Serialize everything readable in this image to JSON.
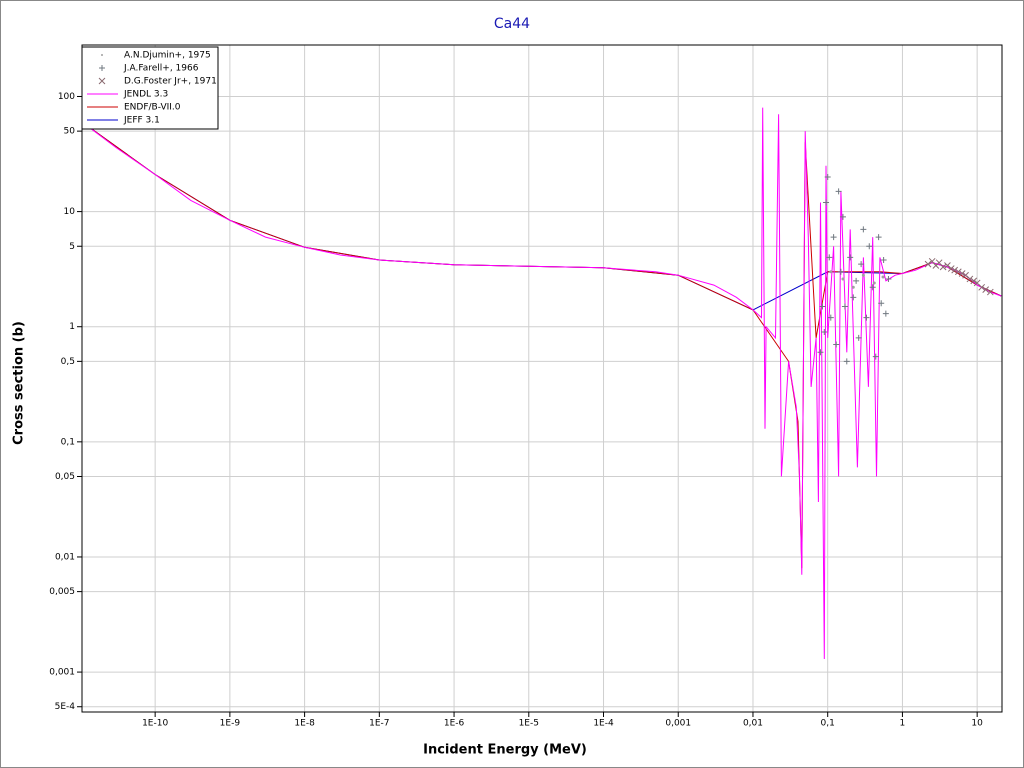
{
  "chart_data": {
    "type": "line",
    "title": "Ca44",
    "x_label": "Incident Energy (MeV)",
    "y_label": "Cross section (b)",
    "log_x": true,
    "log_y": true,
    "grid": true,
    "legend": "upper left",
    "xlim": [
      1.05e-11,
      21.5
    ],
    "ylim": [
      0.00045,
      280
    ],
    "xticks": [
      {
        "value": 1e-10,
        "label": "1E-10"
      },
      {
        "value": 1e-09,
        "label": "1E-9"
      },
      {
        "value": 1e-08,
        "label": "1E-8"
      },
      {
        "value": 1e-07,
        "label": "1E-7"
      },
      {
        "value": 1e-06,
        "label": "1E-6"
      },
      {
        "value": 1e-05,
        "label": "1E-5"
      },
      {
        "value": 0.0001,
        "label": "1E-4"
      },
      {
        "value": 0.001,
        "label": "0,001"
      },
      {
        "value": 0.01,
        "label": "0,01"
      },
      {
        "value": 0.1,
        "label": "0,1"
      },
      1,
      10
    ],
    "yticks": [
      100,
      50,
      10,
      5,
      1,
      {
        "value": 0.5,
        "label": "0,5"
      },
      {
        "value": 0.1,
        "label": "0,1"
      },
      {
        "value": 0.05,
        "label": "0,05"
      },
      {
        "value": 0.01,
        "label": "0,01"
      },
      {
        "value": 0.005,
        "label": "0,005"
      },
      {
        "value": 0.001,
        "label": "0,001"
      },
      {
        "value": 0.0005,
        "label": "5E-4"
      }
    ],
    "series": [
      {
        "name": "A.N.Djumin+, 1975",
        "kind": "dot",
        "color": "#a0a0a0",
        "x": [
          0.11,
          0.16,
          0.22,
          0.3,
          0.42,
          0.55
        ],
        "values": [
          3.0,
          2.6,
          2.2,
          2.8,
          2.4,
          2.7
        ]
      },
      {
        "name": "J.A.Farell+, 1966",
        "kind": "plus",
        "color": "#707880",
        "x": [
          0.08,
          0.085,
          0.09,
          0.095,
          0.1,
          0.105,
          0.11,
          0.12,
          0.13,
          0.14,
          0.15,
          0.16,
          0.17,
          0.18,
          0.2,
          0.22,
          0.24,
          0.26,
          0.28,
          0.3,
          0.33,
          0.36,
          0.4,
          0.44,
          0.48,
          0.52,
          0.56,
          0.6,
          0.65
        ],
        "values": [
          0.6,
          1.5,
          0.9,
          12,
          20,
          4,
          1.2,
          6,
          0.7,
          15,
          3,
          9,
          1.5,
          0.5,
          4,
          1.8,
          2.5,
          0.8,
          3.5,
          7,
          1.2,
          5,
          2.2,
          0.55,
          6,
          1.6,
          3.8,
          1.3,
          2.6
        ]
      },
      {
        "name": "D.G.Foster Jr+, 1971",
        "kind": "cross",
        "color": "#8a6a70",
        "x": [
          2.2,
          2.5,
          2.8,
          3.1,
          3.5,
          4,
          4.5,
          5,
          5.6,
          6.3,
          7,
          8,
          9,
          10,
          11.5,
          13,
          15
        ],
        "values": [
          3.5,
          3.7,
          3.4,
          3.6,
          3.3,
          3.4,
          3.2,
          3.1,
          3.0,
          2.9,
          2.8,
          2.6,
          2.5,
          2.4,
          2.2,
          2.1,
          2.0
        ]
      },
      {
        "name": "JENDL 3.3",
        "kind": "line",
        "color": "#ff00ff",
        "x": [
          1.05e-11,
          3e-11,
          1e-10,
          3e-10,
          1e-09,
          3e-09,
          1e-08,
          3e-08,
          1e-07,
          1e-06,
          1e-05,
          0.0001,
          0.0005,
          0.001,
          0.003,
          0.006,
          0.01,
          0.013,
          0.0135,
          0.0145,
          0.015,
          0.02,
          0.022,
          0.024,
          0.03,
          0.038,
          0.042,
          0.045,
          0.05,
          0.055,
          0.06,
          0.07,
          0.075,
          0.08,
          0.09,
          0.095,
          0.1,
          0.12,
          0.14,
          0.15,
          0.18,
          0.2,
          0.25,
          0.3,
          0.35,
          0.4,
          0.45,
          0.5,
          0.6,
          0.8,
          1,
          1.5,
          2.5,
          4,
          7,
          10,
          15,
          21
        ],
        "values": [
          60,
          36,
          21,
          12.5,
          8.4,
          6.0,
          4.9,
          4.2,
          3.8,
          3.45,
          3.35,
          3.25,
          3.0,
          2.8,
          2.3,
          1.8,
          1.4,
          1.2,
          80,
          0.13,
          1.0,
          0.8,
          70,
          0.05,
          0.5,
          0.2,
          0.05,
          0.007,
          50,
          6,
          0.3,
          0.8,
          0.03,
          12,
          0.0013,
          25,
          0.8,
          5,
          0.05,
          15,
          0.6,
          7,
          0.06,
          4,
          0.3,
          6,
          0.05,
          4,
          2.5,
          2.8,
          2.9,
          3.1,
          3.6,
          3.3,
          2.8,
          2.3,
          2.0,
          1.85
        ]
      },
      {
        "name": "ENDF/B-VII.0",
        "kind": "line",
        "color": "#cc0000",
        "x": [
          1.05e-11,
          1e-10,
          1e-09,
          1e-08,
          1e-07,
          1e-06,
          0.0001,
          0.001,
          0.01,
          0.03,
          0.04,
          0.045,
          0.05,
          0.07,
          0.1,
          0.5,
          1,
          2.5,
          4,
          10,
          21
        ],
        "values": [
          60,
          21,
          8.4,
          4.9,
          3.8,
          3.45,
          3.25,
          2.8,
          1.4,
          0.5,
          0.15,
          0.008,
          40,
          0.8,
          3,
          3,
          2.9,
          3.6,
          3.3,
          2.3,
          1.85
        ]
      },
      {
        "name": "JEFF 3.1",
        "kind": "line",
        "color": "#0000cc",
        "x": [
          1.05e-11,
          1e-10,
          1e-09,
          1e-08,
          1e-07,
          1e-06,
          0.0001,
          0.001,
          0.01,
          0.1,
          1,
          2.5,
          4,
          10,
          21
        ],
        "values": [
          60,
          21,
          8.4,
          4.9,
          3.8,
          3.45,
          3.25,
          2.8,
          1.4,
          3,
          2.9,
          3.6,
          3.3,
          2.3,
          1.85
        ]
      }
    ]
  }
}
